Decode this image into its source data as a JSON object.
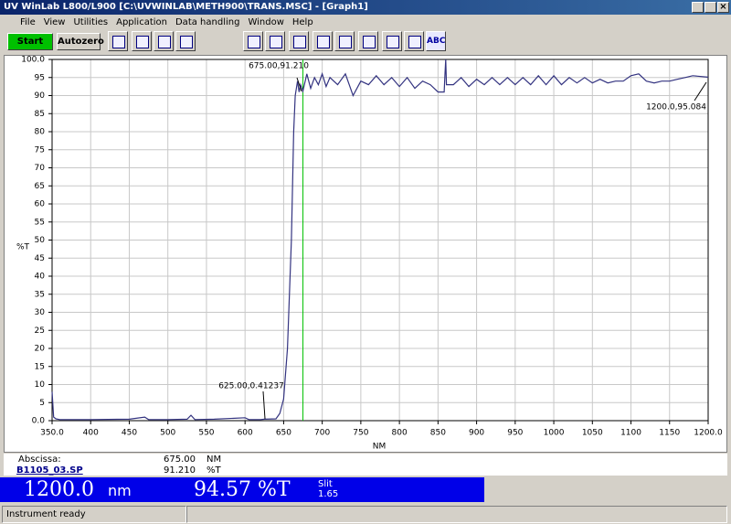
{
  "window_title": "UV WinLab L800/L900 [C:\\UVWINLAB\\METH900\\TRANS.MSC] - [Graph1]",
  "menu": [
    "File",
    "View",
    "Utilities",
    "Application",
    "Data handling",
    "Window",
    "Help"
  ],
  "toolbar": {
    "start": "Start",
    "autozero": "Autozero",
    "abc": "ABC"
  },
  "chart_data": {
    "type": "line",
    "x": [
      350,
      352,
      355,
      360,
      400,
      450,
      470,
      475,
      500,
      525,
      530,
      535,
      560,
      600,
      605,
      620,
      625,
      640,
      645,
      650,
      655,
      660,
      663,
      665,
      668,
      670,
      672,
      675,
      680,
      685,
      690,
      695,
      700,
      705,
      710,
      720,
      730,
      740,
      750,
      760,
      770,
      780,
      790,
      800,
      810,
      820,
      830,
      840,
      850,
      858,
      859,
      860,
      861,
      862,
      870,
      880,
      890,
      900,
      910,
      920,
      930,
      940,
      950,
      960,
      970,
      980,
      990,
      1000,
      1010,
      1020,
      1030,
      1040,
      1050,
      1060,
      1070,
      1080,
      1090,
      1100,
      1110,
      1120,
      1130,
      1140,
      1150,
      1160,
      1170,
      1180,
      1200
    ],
    "series": [
      {
        "name": "B1105_03.SP",
        "color": "#333380",
        "values": [
          8,
          1,
          0.5,
          0.3,
          0.3,
          0.4,
          1,
          0.3,
          0.3,
          0.4,
          1.5,
          0.3,
          0.4,
          0.8,
          0.3,
          0.3,
          0.41237,
          0.5,
          2,
          6,
          20,
          50,
          80,
          90,
          94,
          91,
          93,
          91.21,
          96,
          92,
          95,
          93,
          96,
          92.5,
          95,
          93,
          96,
          90,
          94,
          93,
          95.5,
          93,
          95,
          92.5,
          95,
          92,
          94,
          93,
          91,
          91,
          96,
          100,
          93,
          93,
          93,
          95,
          92.5,
          94.5,
          93,
          95,
          93,
          95,
          93,
          95,
          93,
          95.5,
          93,
          95.5,
          93,
          95,
          93.5,
          95,
          93.5,
          94.5,
          93.5,
          94,
          94,
          95.5,
          96,
          94,
          93.5,
          94,
          94,
          94.5,
          95,
          95.5,
          95.084
        ]
      }
    ],
    "xlim": [
      350,
      1200
    ],
    "ylim": [
      0,
      100
    ],
    "xticks": [
      {
        "value": 350,
        "label": "350.0"
      },
      400,
      450,
      500,
      550,
      600,
      650,
      700,
      750,
      800,
      850,
      900,
      950,
      1000,
      1050,
      1100,
      1150,
      {
        "value": 1200,
        "label": "1200.0"
      }
    ],
    "yticks": [
      {
        "value": 0,
        "label": "0.0"
      },
      5,
      10,
      15,
      20,
      25,
      30,
      35,
      40,
      45,
      50,
      55,
      60,
      65,
      70,
      75,
      80,
      85,
      90,
      95,
      {
        "value": 100,
        "label": "100.0"
      }
    ],
    "xlabel": "NM",
    "ylabel": "%T",
    "grid": true,
    "cursor_x": 675,
    "cursor_color": "#00c000",
    "annotations": [
      "675.00,91.210",
      "625.00,0.41237",
      "1200.0,95.084"
    ]
  },
  "readout": {
    "abscissa_label": "Abscissa:",
    "abscissa": "675.00",
    "abscissa_unit": "NM",
    "sample": "B1105_03.SP",
    "ordinate": "91.210",
    "ordinate_unit": "%T"
  },
  "display": {
    "wavelength": "1200.0",
    "wavelength_unit": "nm",
    "value": "94.57",
    "value_unit": "%T",
    "slit_label": "Slit",
    "slit": "1.65"
  },
  "status": "Instrument ready"
}
